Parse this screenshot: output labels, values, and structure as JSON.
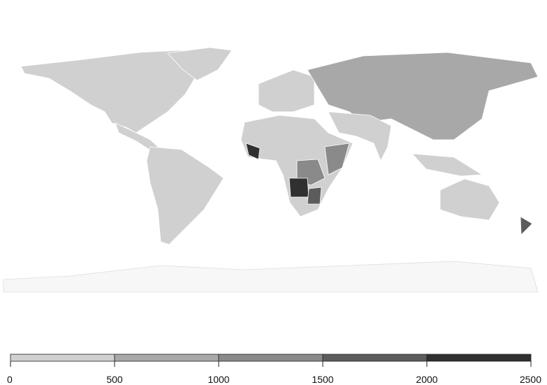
{
  "legend": {
    "ticks": [
      0,
      500,
      1000,
      1500,
      2000,
      2500
    ],
    "colors": [
      "#d0d0d0",
      "#a8a8a8",
      "#8a8a8a",
      "#5c5c5c",
      "#303030"
    ]
  }
}
